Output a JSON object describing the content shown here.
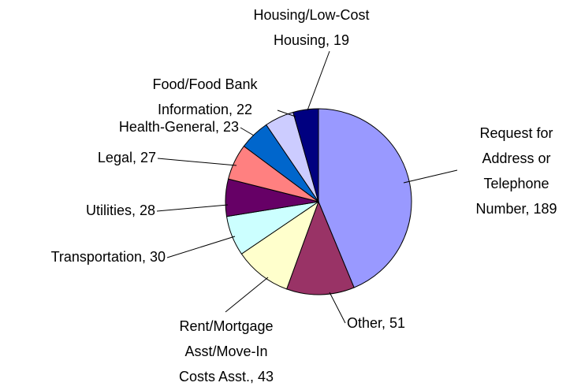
{
  "chart_data": {
    "type": "pie",
    "values": [
      189,
      51,
      43,
      30,
      28,
      27,
      23,
      22,
      19
    ],
    "value_labels": [
      [
        "Request for",
        "Address or",
        "Telephone",
        "Number, 189"
      ],
      [
        "Other, 51"
      ],
      [
        "Rent/Mortgage",
        "Asst/Move-In",
        "Costs Asst., 43"
      ],
      [
        "Transportation, 30"
      ],
      [
        "Utilities, 28"
      ],
      [
        "Legal, 27"
      ],
      [
        "Health-General, 23"
      ],
      [
        "Food/Food Bank",
        "Information, 22"
      ],
      [
        "Housing/Low-Cost",
        "Housing, 19"
      ]
    ],
    "colors": [
      "#9999ff",
      "#993366",
      "#ffffcc",
      "#ccffff",
      "#660066",
      "#ff8080",
      "#0066cc",
      "#ccccff",
      "#000080"
    ]
  }
}
